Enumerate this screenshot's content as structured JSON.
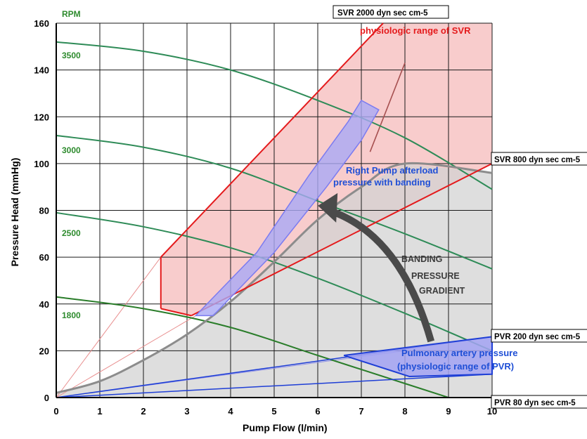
{
  "chart_data": {
    "type": "line",
    "xlabel": "Pump Flow (l/min)",
    "ylabel": "Pressure Head (mmHg)",
    "xlim": [
      0,
      10
    ],
    "ylim": [
      0,
      160
    ],
    "x_ticks": [
      "0",
      "1",
      "2",
      "3",
      "4",
      "5",
      "6",
      "7",
      "8",
      "9",
      "10"
    ],
    "y_ticks": [
      "0",
      "20",
      "40",
      "60",
      "80",
      "100",
      "120",
      "140",
      "160"
    ],
    "grid": true,
    "rpm_header": "RPM",
    "pump_curves": [
      {
        "label": "3500",
        "points": [
          [
            0,
            152
          ],
          [
            2,
            148
          ],
          [
            4,
            140
          ],
          [
            6,
            127
          ],
          [
            8,
            111
          ],
          [
            10,
            89
          ]
        ]
      },
      {
        "label": "3000",
        "points": [
          [
            0,
            112
          ],
          [
            2,
            107
          ],
          [
            4,
            98
          ],
          [
            6,
            84
          ],
          [
            8,
            70
          ],
          [
            10,
            55
          ]
        ]
      },
      {
        "label": "2500",
        "points": [
          [
            0,
            79
          ],
          [
            2,
            73
          ],
          [
            4,
            64
          ],
          [
            6,
            51
          ],
          [
            8,
            36
          ],
          [
            10,
            20
          ]
        ]
      },
      {
        "label": "1800",
        "points": [
          [
            0,
            43
          ],
          [
            2,
            38
          ],
          [
            4,
            30
          ],
          [
            6,
            18
          ],
          [
            8,
            6
          ],
          [
            9,
            0
          ]
        ]
      }
    ],
    "resistance_lines": [
      {
        "label": "SVR 2000 dyn sec cm-5",
        "points": [
          [
            0,
            0
          ],
          [
            7.5,
            162
          ]
        ]
      },
      {
        "label": "SVR 800 dyn sec cm-5",
        "points": [
          [
            0,
            0
          ],
          [
            10,
            100
          ]
        ]
      },
      {
        "label": "PVR 200 dyn sec cm-5",
        "points": [
          [
            0,
            0
          ],
          [
            10,
            26
          ]
        ]
      },
      {
        "label": "PVR   80 dyn sec cm-5",
        "points": [
          [
            0,
            0
          ],
          [
            10,
            10
          ]
        ]
      }
    ],
    "operating_curve": {
      "points": [
        [
          0,
          2
        ],
        [
          1,
          7
        ],
        [
          2,
          16
        ],
        [
          3,
          27
        ],
        [
          4,
          41
        ],
        [
          5,
          58
        ],
        [
          6,
          76
        ],
        [
          7,
          90
        ],
        [
          8,
          100
        ],
        [
          10,
          96
        ],
        [
          10,
          0
        ],
        [
          0,
          0
        ]
      ]
    },
    "svr_region": {
      "points": [
        [
          2.4,
          38
        ],
        [
          2.4,
          60
        ],
        [
          7.5,
          162
        ],
        [
          10,
          162
        ],
        [
          10,
          100
        ],
        [
          3.1,
          35
        ]
      ]
    },
    "banding_band": {
      "points": [
        [
          3.2,
          35
        ],
        [
          3.6,
          35
        ],
        [
          5,
          62
        ],
        [
          6.2,
          90
        ],
        [
          7.0,
          110
        ],
        [
          7.4,
          123
        ],
        [
          7.0,
          127
        ],
        [
          6.7,
          118
        ],
        [
          5.8,
          95
        ],
        [
          4.6,
          62
        ]
      ]
    },
    "pulmonary_region": {
      "points": [
        [
          6.6,
          18
        ],
        [
          10,
          26
        ],
        [
          10,
          10
        ],
        [
          8.1,
          9
        ]
      ]
    },
    "thin_lines": [
      {
        "points": [
          [
            0,
            0
          ],
          [
            2.4,
            60
          ]
        ]
      },
      {
        "points": [
          [
            0,
            0
          ],
          [
            3.2,
            35
          ]
        ]
      },
      {
        "points": [
          [
            0,
            0
          ],
          [
            8,
            20
          ]
        ]
      },
      {
        "points": [
          [
            0,
            0
          ],
          [
            8,
            8
          ]
        ]
      },
      {
        "points": [
          [
            7.2,
            105
          ],
          [
            8,
            143
          ]
        ]
      }
    ],
    "annotations": {
      "svr_range": "physiologic range of SVR",
      "right_pump_line1": "Right Pump afterload",
      "right_pump_line2": "pressure with banding",
      "banding_line1": "BANDING",
      "banding_line2": "PRESSURE",
      "banding_line3": "GRADIENT",
      "pulmonary_line1": "Pulmonary  artery  pressure",
      "pulmonary_line2": "(physiologic range of PVR)"
    },
    "colors": {
      "pump_curves": "#2e8b57",
      "pump_curve_1800": "#2a7d2a",
      "svr_lines": "#e41a1c",
      "svr_fill": "#f7c3c3",
      "operating_fill": "#d3d3d3",
      "operating_line": "#8c8c8c",
      "banding_fill": "#a9a9f5",
      "banding_stroke": "#7b7bf0",
      "pvr_lines": "#1f3fd6",
      "pulmonary_fill": "#a3a3f3",
      "arrow": "#4a4a4a",
      "thin_red": "#e99090",
      "thin_blue": "#9090e6",
      "brown_line": "#a65050"
    }
  }
}
